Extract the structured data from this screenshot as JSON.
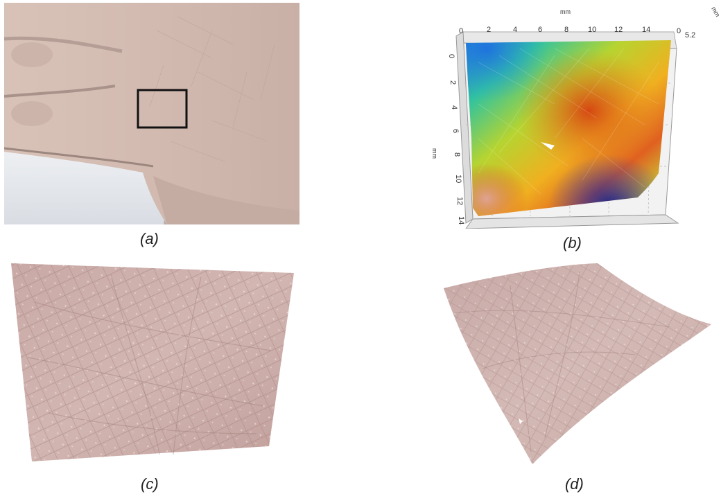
{
  "figure": {
    "captions": {
      "a": "(a)",
      "b": "(b)",
      "c": "(c)",
      "d": "(d)"
    },
    "panel_b": {
      "unit": "mm",
      "x_ticks": [
        "0",
        "2",
        "4",
        "6",
        "8",
        "10",
        "12",
        "14"
      ],
      "y_ticks": [
        "0",
        "2",
        "4",
        "6",
        "8",
        "10",
        "12",
        "14"
      ],
      "z_ticks": [
        "0",
        "5.2"
      ]
    }
  }
}
